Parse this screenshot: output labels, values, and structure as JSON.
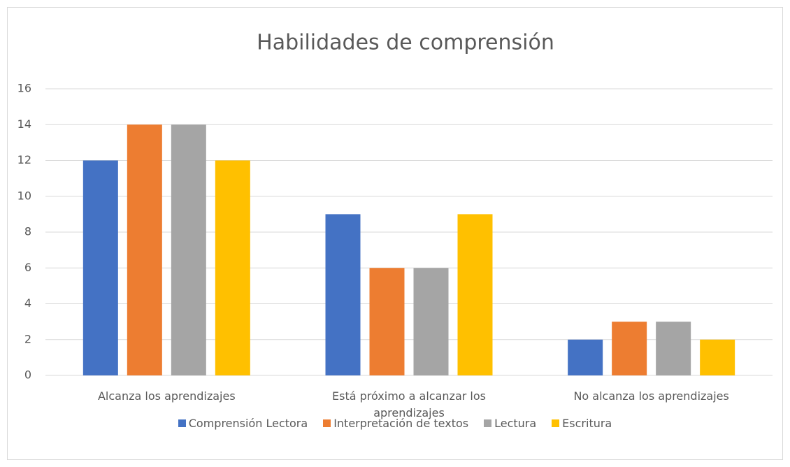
{
  "chart_data": {
    "type": "bar",
    "title": "Habilidades de comprensión",
    "categories": [
      "Alcanza los aprendizajes",
      "Está próximo a alcanzar los aprendizajes",
      "No alcanza los aprendizajes"
    ],
    "series": [
      {
        "name": "Comprensión Lectora",
        "color": "#4472c4",
        "values": [
          12,
          9,
          2
        ]
      },
      {
        "name": "Interpretación de textos",
        "color": "#ed7d31",
        "values": [
          14,
          6,
          3
        ]
      },
      {
        "name": "Lectura",
        "color": "#a5a5a5",
        "values": [
          14,
          6,
          3
        ]
      },
      {
        "name": "Escritura",
        "color": "#ffc000",
        "values": [
          12,
          9,
          2
        ]
      }
    ],
    "ylim": [
      0,
      16
    ],
    "yticks": [
      0,
      2,
      4,
      6,
      8,
      10,
      12,
      14,
      16
    ],
    "grid": true,
    "legend": "bottom"
  }
}
